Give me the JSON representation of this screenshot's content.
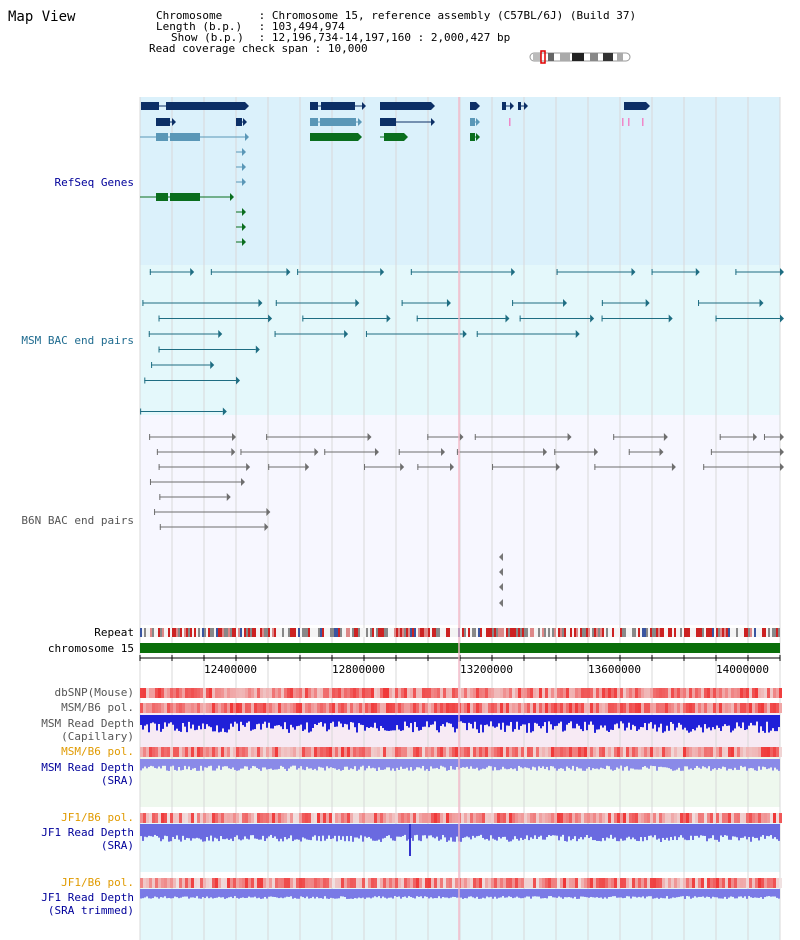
{
  "page": {
    "title": "Map View"
  },
  "info": {
    "chromosome_key": "Chromosome",
    "chromosome_val": "Chromosome 15, reference assembly (C57BL/6J) (Build 37)",
    "length_key": "Length (b.p.)",
    "length_val": "103,494,974",
    "show_key": "Show (b.p.)",
    "show_val": "12,196,734-14,197,160 : 2,000,427 bp",
    "coverage_key": "Read coverage check span",
    "coverage_val": "10,000"
  },
  "tracks": {
    "refseq": "RefSeq Genes",
    "msm_bac": "MSM BAC end pairs",
    "b6n_bac": "B6N BAC end pairs",
    "repeat": "Repeat",
    "chromosome": "chromosome 15",
    "dbsnp": "dbSNP(Mouse)",
    "msm_pol": "MSM/B6 pol.",
    "msm_depth_cap_1": "MSM Read Depth",
    "msm_depth_cap_2": "(Capillary)",
    "msm_pol2": "MSM/B6 pol.",
    "msm_depth_sra_1": "MSM Read Depth",
    "msm_depth_sra_2": "(SRA)",
    "jf1_pol": "JF1/B6 pol.",
    "jf1_depth_1": "JF1 Read Depth",
    "jf1_depth_2": "(SRA)",
    "jf1_pol2": "JF1/B6 pol.",
    "jf1_trim_1": "JF1 Read Depth",
    "jf1_trim_2": "(SRA trimmed)"
  },
  "axis": {
    "ticks": [
      "12400000",
      "12800000",
      "13200000",
      "13600000",
      "14000000"
    ]
  },
  "colors": {
    "refseq_bg": "#dbf1fb",
    "msm_bac_bg": "#e4f8fb",
    "b6n_bg": "#f7f7ff",
    "gene_dark": "#0c2f66",
    "gene_mid": "#5a97b7",
    "gene_green": "#0a6e1e",
    "msm_line": "#1e6d82",
    "b6n_line": "#6e6e6e",
    "chrom_green": "#0a6e0a",
    "label_navy": "#00009a",
    "label_teal": "#1f6b8f",
    "label_gray": "#555555",
    "label_orange": "#e09a00"
  }
}
